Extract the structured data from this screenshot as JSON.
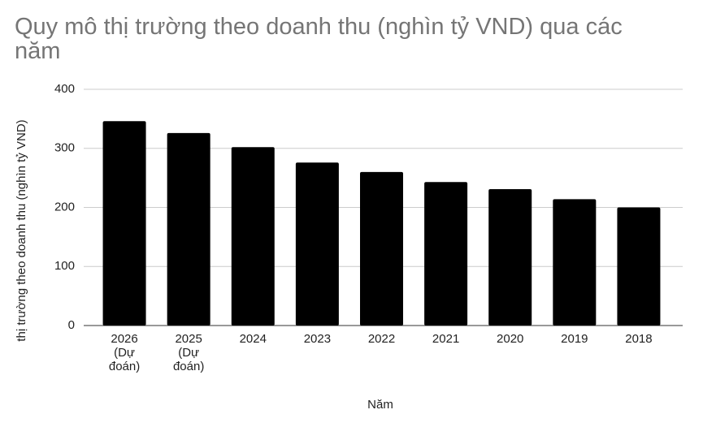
{
  "chart_data": {
    "type": "bar",
    "title": "Quy mô thị trường theo doanh thu (nghìn tỷ VND) qua các năm",
    "x_label": "Năm",
    "y_label": "thị trường theo doanh thu (nghìn tỷ VND)",
    "categories": [
      "2026 (Dự đoán)",
      "2025 (Dự đoán)",
      "2024",
      "2023",
      "2022",
      "2021",
      "2020",
      "2019",
      "2018"
    ],
    "values": [
      346,
      326,
      302,
      276,
      260,
      243,
      231,
      214,
      200
    ],
    "color": "#000000",
    "ylim": [
      0,
      400
    ],
    "yticks": [
      0,
      100,
      200,
      300,
      400
    ],
    "grid": true
  }
}
